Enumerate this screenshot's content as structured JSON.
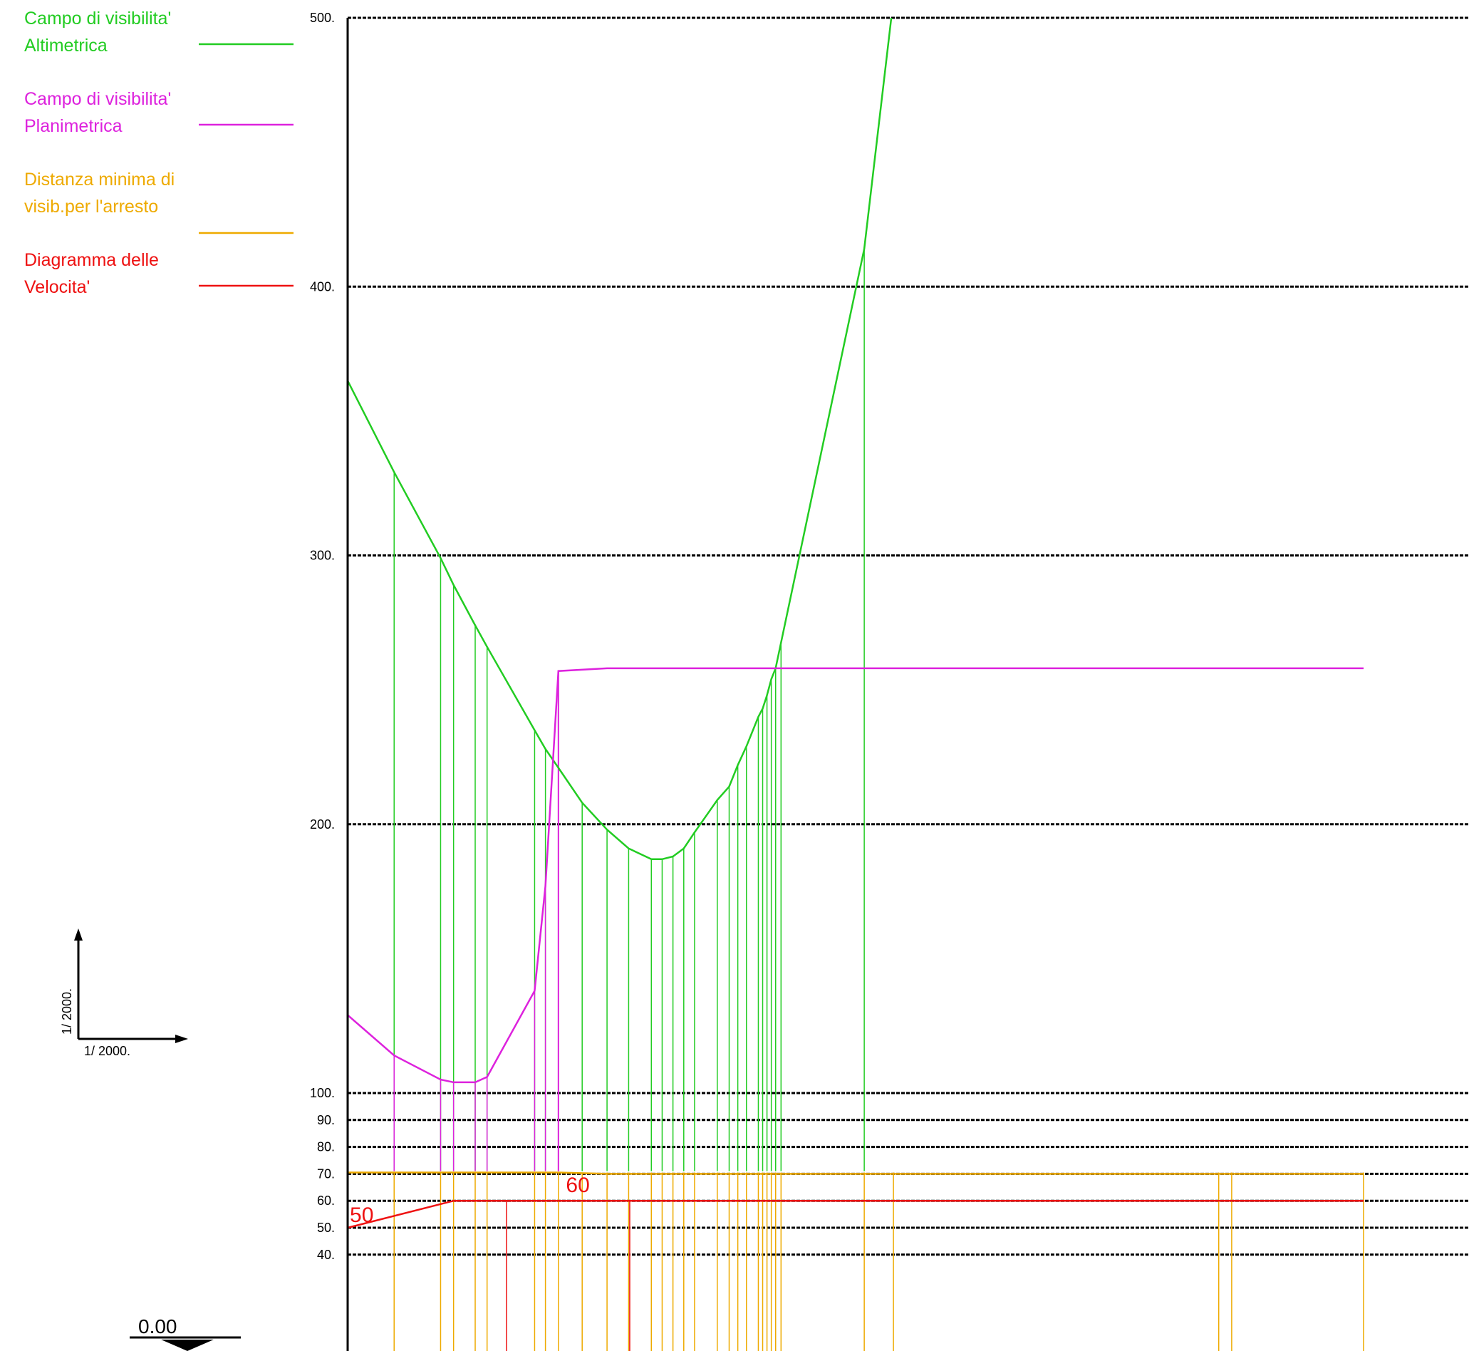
{
  "legend": [
    {
      "lines": [
        "Campo di visibilita'",
        "Altimetrica"
      ],
      "color": "#22cc22"
    },
    {
      "lines": [
        "Campo di visibilita'",
        "Planimetrica"
      ],
      "color": "#dd22dd"
    },
    {
      "lines": [
        "Distanza minima di",
        "visib.per l'arresto"
      ],
      "color": "#eeaa00"
    },
    {
      "lines": [
        "Diagramma delle",
        "Velocita'"
      ],
      "color": "#ee1111"
    }
  ],
  "scale": {
    "vertical": "1/  2000.",
    "horizontal": "1/   2000."
  },
  "datum_label": "0.00",
  "chart_data": {
    "type": "line",
    "y_axis_ticks": [
      "500.",
      "400.",
      "300.",
      "200.",
      "100.",
      "90.",
      "80.",
      "70.",
      "60.",
      "50.",
      "40."
    ],
    "y_axis_note": "Two linear segments: 100 to 500 in steps of 100, and 40 to 100 in steps of 10 (expanded scale).",
    "ylim": [
      25,
      500
    ],
    "grid": true,
    "x": [
      0,
      43,
      86,
      98,
      118,
      129,
      173,
      183,
      195,
      217,
      240,
      260,
      281,
      291,
      301,
      311,
      321,
      342,
      353,
      361,
      369,
      380,
      384,
      388,
      392,
      396,
      401,
      478,
      505,
      806,
      818,
      940
    ],
    "series": [
      {
        "color": "#22cc22",
        "points": [
          [
            0,
            365
          ],
          [
            43,
            331
          ],
          [
            86,
            299
          ],
          [
            98,
            289
          ],
          [
            118,
            274
          ],
          [
            129,
            266
          ],
          [
            173,
            235
          ],
          [
            183,
            228
          ],
          [
            195,
            221
          ],
          [
            217,
            208
          ],
          [
            240,
            198
          ],
          [
            260,
            191
          ],
          [
            281,
            187
          ],
          [
            291,
            187
          ],
          [
            301,
            188
          ],
          [
            311,
            191
          ],
          [
            321,
            197
          ],
          [
            342,
            209
          ],
          [
            353,
            214
          ],
          [
            361,
            222
          ],
          [
            369,
            229
          ],
          [
            380,
            240
          ],
          [
            384,
            243
          ],
          [
            388,
            248
          ],
          [
            392,
            254
          ],
          [
            396,
            258
          ],
          [
            478,
            414
          ],
          [
            503,
            500
          ]
        ]
      },
      {
        "color": "#dd22dd",
        "points": [
          [
            0,
            129
          ],
          [
            43,
            114
          ],
          [
            86,
            105
          ],
          [
            98,
            104
          ],
          [
            118,
            104
          ],
          [
            129,
            106
          ],
          [
            173,
            138
          ],
          [
            183,
            177
          ],
          [
            195,
            257
          ],
          [
            240,
            258
          ],
          [
            300,
            258
          ],
          [
            396,
            258
          ],
          [
            806,
            258
          ],
          [
            940,
            258
          ]
        ]
      },
      {
        "color": "#eeaa00",
        "points": [
          [
            0,
            70.5
          ],
          [
            43,
            70.5
          ],
          [
            86,
            70.5
          ],
          [
            173,
            70.5
          ],
          [
            195,
            70.5
          ],
          [
            240,
            70
          ],
          [
            396,
            70
          ],
          [
            940,
            70
          ]
        ]
      },
      {
        "color": "#ee1111",
        "points": [
          [
            0,
            50
          ],
          [
            98,
            60
          ],
          [
            940,
            60
          ]
        ]
      }
    ],
    "annotations": [
      "50",
      "60"
    ]
  }
}
